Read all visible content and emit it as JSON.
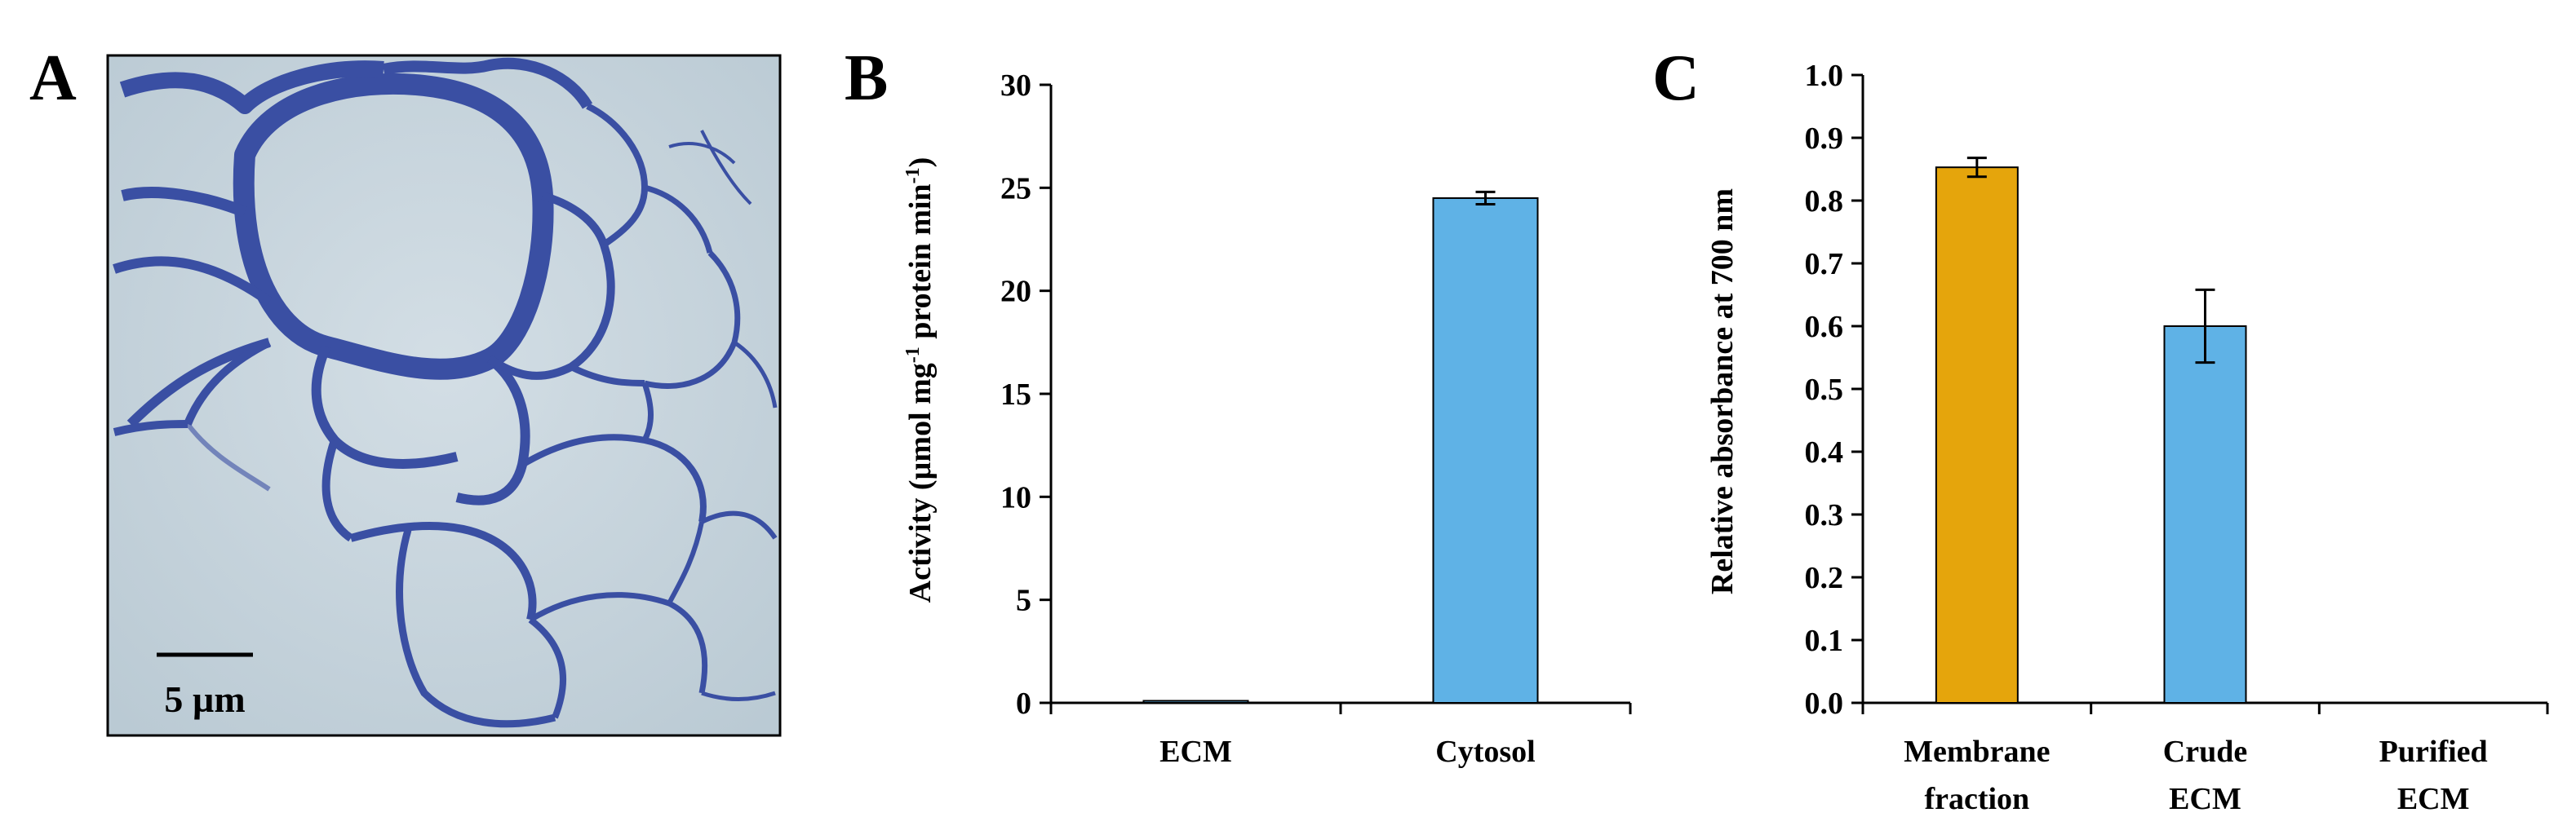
{
  "panel_letters": {
    "a": "A",
    "b": "B",
    "c": "C"
  },
  "micrograph": {
    "scale_bar_label": "5 µm",
    "cell_wall_color": "#3a4fa3",
    "background_color": "#c5d3dc"
  },
  "chart_data": [
    {
      "panel": "B",
      "type": "bar",
      "categories": [
        "ECM",
        "Cytosol"
      ],
      "values": [
        0.1,
        24.5
      ],
      "errors": [
        0.05,
        0.3
      ],
      "colors": [
        "#5fb2e6",
        "#5fb2e6"
      ],
      "ylabel_main": "Activity (µmol mg",
      "ylabel_sup1": "-1",
      "ylabel_mid": " protein min",
      "ylabel_sup2": "-1",
      "ylabel_end": ")",
      "ylim": [
        0,
        30
      ],
      "yticks": [
        "0",
        "5",
        "10",
        "15",
        "20",
        "25",
        "30"
      ],
      "grid": false,
      "legend": "none"
    },
    {
      "panel": "C",
      "type": "bar",
      "categories": [
        [
          "Membrane",
          "fraction"
        ],
        [
          "Crude",
          "ECM"
        ],
        [
          "Purified",
          "ECM"
        ]
      ],
      "values": [
        0.853,
        0.6,
        0
      ],
      "errors": [
        0.015,
        0.058,
        0
      ],
      "colors": [
        "#e5a50c",
        "#5fb2e6",
        "#5fb2e6"
      ],
      "ylabel": "Relative absorbance at 700 nm",
      "ylim": [
        0,
        1.0
      ],
      "yticks": [
        "0.0",
        "0.1",
        "0.2",
        "0.3",
        "0.4",
        "0.5",
        "0.6",
        "0.7",
        "0.8",
        "0.9",
        "1.0"
      ],
      "grid": false,
      "legend": "none"
    }
  ]
}
